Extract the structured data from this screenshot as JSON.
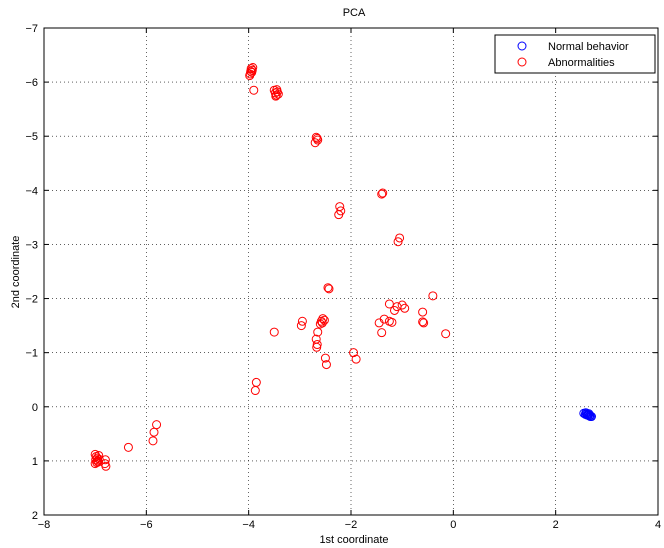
{
  "chart_data": {
    "type": "scatter",
    "title": "PCA",
    "xlabel": "1st coordinate",
    "ylabel": "2nd coordinate",
    "xlim": [
      -8,
      4
    ],
    "ylim": [
      2,
      -7
    ],
    "y_axis_reversed": true,
    "grid": true,
    "legend_position": "top-right",
    "x_ticks": [
      -8,
      -6,
      -4,
      -2,
      0,
      2,
      4
    ],
    "y_ticks": [
      -7,
      -6,
      -5,
      -4,
      -3,
      -2,
      -1,
      0,
      1,
      2
    ],
    "x_tick_labels": [
      "−8",
      "−6",
      "−4",
      "−2",
      "0",
      "2",
      "4"
    ],
    "y_tick_labels": [
      "−7",
      "−6",
      "−5",
      "−4",
      "−3",
      "−2",
      "−1",
      "0",
      "1",
      "2"
    ],
    "series": [
      {
        "name": "Normal behavior",
        "color": "#0000ff",
        "marker": "circle-open",
        "points": [
          [
            2.55,
            0.12
          ],
          [
            2.58,
            0.14
          ],
          [
            2.6,
            0.13
          ],
          [
            2.62,
            0.15
          ],
          [
            2.64,
            0.16
          ],
          [
            2.66,
            0.17
          ],
          [
            2.68,
            0.18
          ],
          [
            2.7,
            0.18
          ],
          [
            2.59,
            0.11
          ],
          [
            2.63,
            0.14
          ],
          [
            2.67,
            0.16
          ],
          [
            2.61,
            0.15
          ],
          [
            2.65,
            0.13
          ]
        ]
      },
      {
        "name": "Abnormalities",
        "color": "#ff0000",
        "marker": "circle-open",
        "points": [
          [
            -3.95,
            -6.25
          ],
          [
            -3.96,
            -6.2
          ],
          [
            -3.97,
            -6.15
          ],
          [
            -3.93,
            -6.22
          ],
          [
            -3.94,
            -6.18
          ],
          [
            -3.98,
            -6.12
          ],
          [
            -3.92,
            -6.27
          ],
          [
            -3.5,
            -5.85
          ],
          [
            -3.48,
            -5.8
          ],
          [
            -3.46,
            -5.76
          ],
          [
            -3.44,
            -5.82
          ],
          [
            -3.42,
            -5.78
          ],
          [
            -3.47,
            -5.74
          ],
          [
            -3.45,
            -5.86
          ],
          [
            -3.9,
            -5.85
          ],
          [
            -2.68,
            -4.98
          ],
          [
            -2.65,
            -4.93
          ],
          [
            -2.7,
            -4.88
          ],
          [
            -2.66,
            -4.96
          ],
          [
            -1.4,
            -3.93
          ],
          [
            -1.38,
            -3.95
          ],
          [
            -2.22,
            -3.7
          ],
          [
            -2.2,
            -3.62
          ],
          [
            -2.24,
            -3.55
          ],
          [
            -1.05,
            -3.12
          ],
          [
            -1.08,
            -3.05
          ],
          [
            -2.45,
            -2.2
          ],
          [
            -2.43,
            -2.18
          ],
          [
            -0.4,
            -2.05
          ],
          [
            -1.25,
            -1.9
          ],
          [
            -1.1,
            -1.85
          ],
          [
            -1.0,
            -1.88
          ],
          [
            -0.95,
            -1.82
          ],
          [
            -1.15,
            -1.78
          ],
          [
            -0.6,
            -1.75
          ],
          [
            -1.35,
            -1.62
          ],
          [
            -1.2,
            -1.56
          ],
          [
            -1.45,
            -1.55
          ],
          [
            -1.25,
            -1.58
          ],
          [
            -0.6,
            -1.57
          ],
          [
            -0.58,
            -1.55
          ],
          [
            -0.15,
            -1.35
          ],
          [
            -1.4,
            -1.37
          ],
          [
            -2.95,
            -1.58
          ],
          [
            -2.97,
            -1.5
          ],
          [
            -3.5,
            -1.38
          ],
          [
            -2.55,
            -1.63
          ],
          [
            -2.52,
            -1.6
          ],
          [
            -2.56,
            -1.55
          ],
          [
            -2.58,
            -1.58
          ],
          [
            -2.6,
            -1.53
          ],
          [
            -2.65,
            -1.38
          ],
          [
            -2.68,
            -1.25
          ],
          [
            -2.66,
            -1.15
          ],
          [
            -2.67,
            -1.1
          ],
          [
            -2.5,
            -0.9
          ],
          [
            -2.48,
            -0.78
          ],
          [
            -1.95,
            -1.0
          ],
          [
            -1.9,
            -0.88
          ],
          [
            -3.85,
            -0.45
          ],
          [
            -3.87,
            -0.3
          ],
          [
            -7.0,
            0.88
          ],
          [
            -6.98,
            0.92
          ],
          [
            -6.96,
            0.95
          ],
          [
            -6.99,
            0.98
          ],
          [
            -6.95,
            1.0
          ],
          [
            -6.97,
            1.03
          ],
          [
            -7.0,
            1.05
          ],
          [
            -6.93,
            0.9
          ],
          [
            -6.92,
            0.97
          ],
          [
            -6.94,
            1.02
          ],
          [
            -6.8,
            0.98
          ],
          [
            -6.81,
            1.05
          ],
          [
            -6.79,
            1.1
          ],
          [
            -6.35,
            0.75
          ],
          [
            -5.8,
            0.33
          ],
          [
            -5.85,
            0.47
          ],
          [
            -5.87,
            0.63
          ]
        ]
      }
    ]
  }
}
